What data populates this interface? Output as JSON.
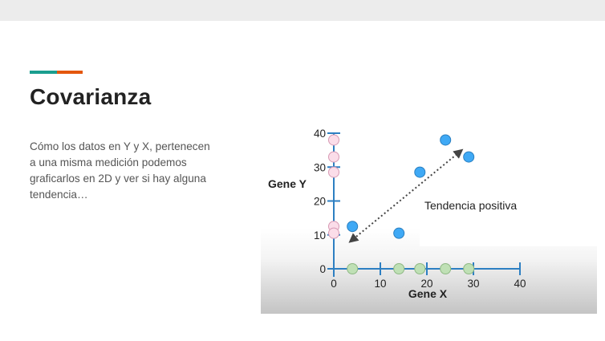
{
  "slide": {
    "title": "Covarianza",
    "body": "Cómo los datos en Y y X, pertenecen a una misma medición podemos graficarlos en 2D y ver si hay alguna tendencia…"
  },
  "colors": {
    "accent_teal": "#1a9e8f",
    "accent_orange": "#e4570e",
    "axis": "#2d7fc2",
    "point_blue": "#3fa9f5",
    "point_pink": "#fbdde9",
    "point_green": "#bfe0b5"
  },
  "chart_data": {
    "type": "scatter",
    "xlabel": "Gene X",
    "ylabel": "Gene Y",
    "annotation": "Tendencia positiva",
    "x_ticks": [
      "0",
      "10",
      "20",
      "30",
      "40"
    ],
    "y_ticks": [
      "0",
      "10",
      "20",
      "30",
      "40"
    ],
    "xlim": [
      0,
      40
    ],
    "ylim": [
      0,
      40
    ],
    "series": [
      {
        "points": [
          [
            4,
            12.5
          ],
          [
            14,
            10.5
          ],
          [
            18.5,
            28.5
          ],
          [
            24,
            38
          ],
          [
            29,
            33
          ]
        ]
      },
      {
        "points": [
          [
            0,
            38
          ],
          [
            0,
            33
          ],
          [
            0,
            28.5
          ],
          [
            0,
            12.5
          ],
          [
            0,
            10.5
          ]
        ]
      },
      {
        "points": [
          [
            4,
            0
          ],
          [
            14,
            0
          ],
          [
            18.5,
            0
          ],
          [
            24,
            0
          ],
          [
            29,
            0
          ]
        ]
      }
    ],
    "trend_arrow": {
      "from": [
        3.5,
        8
      ],
      "to": [
        27.5,
        35
      ]
    }
  }
}
